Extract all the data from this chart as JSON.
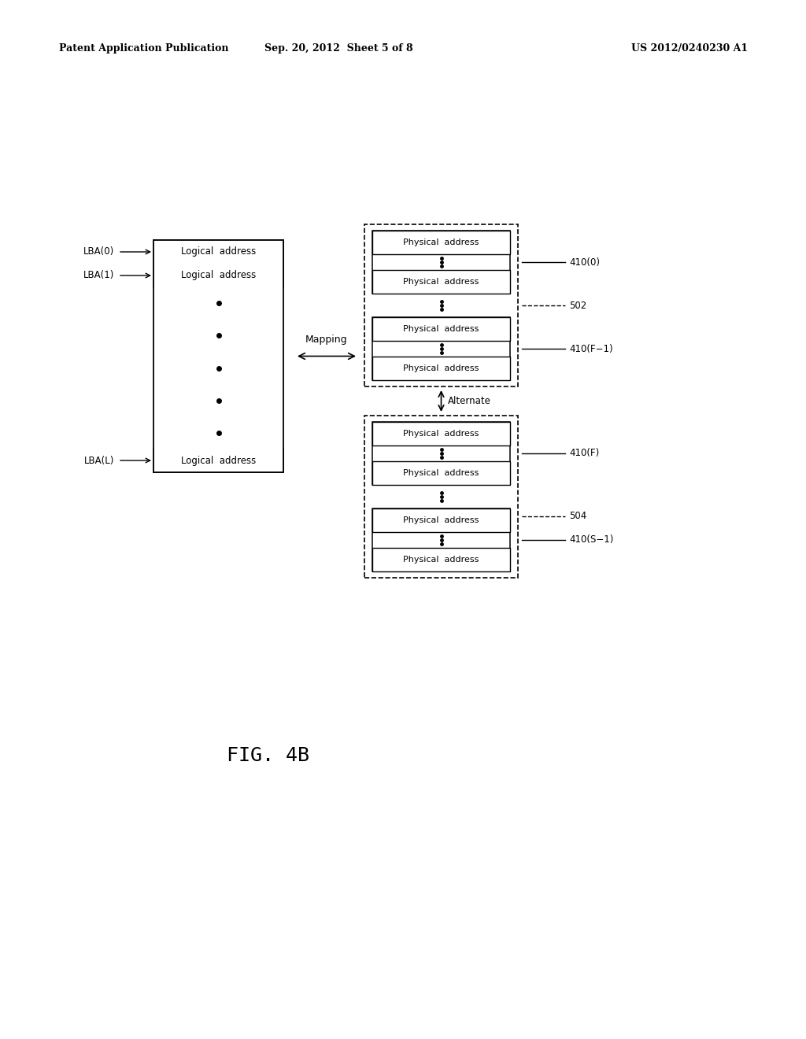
{
  "bg_color": "#ffffff",
  "header_left": "Patent Application Publication",
  "header_center": "Sep. 20, 2012  Sheet 5 of 8",
  "header_right": "US 2012/0240230 A1",
  "fig_label": "FIG. 4B",
  "mapping_label": "Mapping",
  "alternate_label": "Alternate",
  "group1_label": "502",
  "group2_label": "504",
  "lba0_label": "LBA(0)",
  "lba1_label": "LBA(1)",
  "lbaL_label": "LBA(L)",
  "blk0_label": "410(0)",
  "blkF1_label": "410(F−1)",
  "blkF_label": "410(F)",
  "blkS1_label": "410(S−1)",
  "logical_text": "Logical  address",
  "physical_text": "Physical  address"
}
